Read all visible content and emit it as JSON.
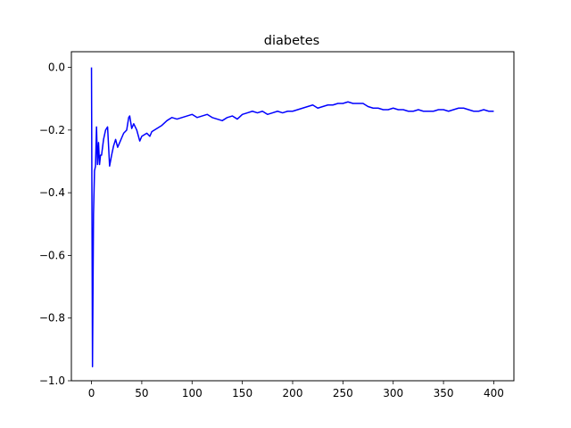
{
  "chart_data": {
    "type": "line",
    "title": "diabetes",
    "xlabel": "",
    "ylabel": "",
    "xlim": [
      -20,
      420
    ],
    "ylim": [
      -1.0,
      0.05
    ],
    "x_ticks": [
      0,
      50,
      100,
      150,
      200,
      250,
      300,
      350,
      400
    ],
    "y_ticks": [
      0.0,
      -0.2,
      -0.4,
      -0.6,
      -0.8,
      -1.0
    ],
    "x_tick_labels": [
      "0",
      "50",
      "100",
      "150",
      "200",
      "250",
      "300",
      "350",
      "400"
    ],
    "y_tick_labels": [
      "0.0",
      "−0.2",
      "−0.4",
      "−0.6",
      "−0.8",
      "−1.0"
    ],
    "grid": false,
    "series": [
      {
        "color": "#0000ff",
        "x": [
          0,
          1,
          2,
          3,
          4,
          5,
          6,
          7,
          8,
          9,
          10,
          12,
          14,
          16,
          18,
          20,
          22,
          24,
          26,
          28,
          30,
          32,
          35,
          37,
          38,
          40,
          42,
          45,
          48,
          50,
          55,
          58,
          60,
          65,
          70,
          75,
          80,
          85,
          90,
          95,
          100,
          105,
          110,
          115,
          120,
          125,
          130,
          135,
          140,
          145,
          150,
          155,
          160,
          165,
          170,
          175,
          180,
          185,
          190,
          195,
          200,
          205,
          210,
          215,
          220,
          225,
          230,
          235,
          240,
          245,
          250,
          255,
          260,
          265,
          270,
          275,
          280,
          285,
          290,
          295,
          300,
          305,
          310,
          315,
          320,
          325,
          330,
          335,
          340,
          345,
          350,
          355,
          360,
          365,
          370,
          375,
          380,
          385,
          390,
          395,
          400
        ],
        "y": [
          0.0,
          -0.955,
          -0.47,
          -0.33,
          -0.315,
          -0.19,
          -0.31,
          -0.24,
          -0.31,
          -0.28,
          -0.28,
          -0.23,
          -0.2,
          -0.19,
          -0.315,
          -0.28,
          -0.25,
          -0.23,
          -0.255,
          -0.24,
          -0.225,
          -0.21,
          -0.2,
          -0.16,
          -0.155,
          -0.195,
          -0.18,
          -0.2,
          -0.235,
          -0.22,
          -0.21,
          -0.22,
          -0.205,
          -0.195,
          -0.185,
          -0.17,
          -0.16,
          -0.165,
          -0.16,
          -0.155,
          -0.15,
          -0.16,
          -0.155,
          -0.15,
          -0.16,
          -0.165,
          -0.17,
          -0.16,
          -0.155,
          -0.165,
          -0.15,
          -0.145,
          -0.14,
          -0.145,
          -0.14,
          -0.15,
          -0.145,
          -0.14,
          -0.145,
          -0.14,
          -0.14,
          -0.135,
          -0.13,
          -0.125,
          -0.12,
          -0.13,
          -0.125,
          -0.12,
          -0.12,
          -0.115,
          -0.115,
          -0.11,
          -0.115,
          -0.115,
          -0.115,
          -0.125,
          -0.13,
          -0.13,
          -0.135,
          -0.135,
          -0.13,
          -0.135,
          -0.135,
          -0.14,
          -0.14,
          -0.135,
          -0.14,
          -0.14,
          -0.14,
          -0.135,
          -0.135,
          -0.14,
          -0.135,
          -0.13,
          -0.13,
          -0.135,
          -0.14,
          -0.14,
          -0.135,
          -0.14,
          -0.14
        ]
      }
    ]
  }
}
